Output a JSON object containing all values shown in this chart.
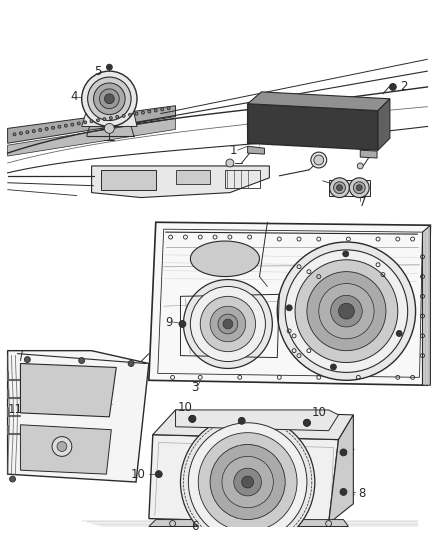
{
  "background_color": "#ffffff",
  "fig_width": 4.38,
  "fig_height": 5.33,
  "dpi": 100,
  "line_color": "#2a2a2a",
  "label_fontsize": 8.5,
  "gray_light": "#e8e8e8",
  "gray_med": "#cccccc",
  "gray_dark": "#aaaaaa",
  "gray_very_dark": "#555555",
  "gray_body": "#d0d0d0",
  "dot_color": "#444444"
}
